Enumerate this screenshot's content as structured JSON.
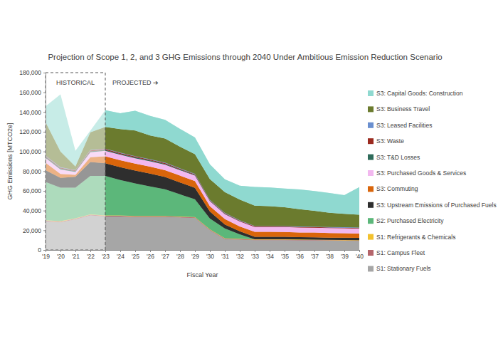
{
  "chart_data": {
    "type": "area",
    "stacked": true,
    "grid": false,
    "legend": "right",
    "title": "Projection of Scope 1, 2, and 3 GHG Emissions through 2040 Under Ambitious Emission Reduction Scenario",
    "x_label": "Fiscal Year",
    "y_label": "GHG Emissions [MTCO2e]",
    "annotations": [
      {
        "text": "HISTORICAL",
        "x": "'19"
      },
      {
        "text": "PROJECTED ➔",
        "x": "'23"
      }
    ],
    "categories": [
      "'19",
      "'20",
      "'21",
      "'22",
      "'23",
      "'24",
      "'25",
      "'26",
      "'27",
      "'28",
      "'29",
      "'30",
      "'31",
      "'32",
      "'33",
      "'34",
      "'35",
      "'36",
      "'37",
      "'38",
      "'39",
      "'40"
    ],
    "ylim": [
      0,
      180000
    ],
    "yticks": [
      0,
      {
        "value": 20000,
        "label": "20,000"
      },
      {
        "value": 40000,
        "label": "40,000"
      },
      {
        "value": 60000,
        "label": "60,000"
      },
      {
        "value": 80000,
        "label": "80,000"
      },
      {
        "value": 100000,
        "label": "100,000"
      },
      {
        "value": 120000,
        "label": "120,000"
      },
      {
        "value": 140000,
        "label": "140,000"
      },
      {
        "value": 160000,
        "label": "160,000"
      },
      {
        "value": 180000,
        "label": "180,000"
      }
    ],
    "series": [
      {
        "name": "S1: Stationary Fuels",
        "color": "#a6a6a6",
        "values": [
          29000,
          28000,
          31000,
          35000,
          34000,
          34000,
          33500,
          33500,
          33500,
          33000,
          32500,
          20000,
          11000,
          10500,
          10000,
          10000,
          10000,
          9800,
          9700,
          9500,
          9400,
          9300
        ]
      },
      {
        "name": "S1: Campus Fleet",
        "color": "#b5656b",
        "values": [
          800,
          800,
          800,
          800,
          700,
          700,
          700,
          650,
          650,
          600,
          600,
          550,
          500,
          500,
          450,
          450,
          400,
          400,
          350,
          350,
          300,
          300
        ]
      },
      {
        "name": "S1: Refrigerants & Chemicals",
        "color": "#f2c12e",
        "values": [
          400,
          400,
          400,
          400,
          400,
          400,
          400,
          400,
          400,
          400,
          400,
          400,
          400,
          400,
          400,
          400,
          400,
          400,
          400,
          400,
          400,
          400
        ]
      },
      {
        "name": "S2: Purchased Electricity",
        "color": "#5cb77a",
        "values": [
          38800,
          34000,
          31000,
          39000,
          40000,
          36000,
          33000,
          30000,
          27000,
          22500,
          18000,
          11000,
          10000,
          4500,
          0,
          0,
          0,
          0,
          0,
          0,
          0,
          0
        ]
      },
      {
        "name": "S3: Upstream Emissions of Purchased Fuels",
        "color": "#2e2e2e",
        "values": [
          12000,
          10000,
          11000,
          14000,
          13000,
          13000,
          13000,
          13000,
          12500,
          12000,
          11500,
          7000,
          4000,
          3000,
          2500,
          2500,
          2500,
          2400,
          2400,
          2300,
          2300,
          2200
        ]
      },
      {
        "name": "S3: Commuting",
        "color": "#d9650b",
        "values": [
          7500,
          4000,
          2000,
          5000,
          7000,
          7000,
          7000,
          7000,
          7000,
          7000,
          7000,
          5500,
          5500,
          5000,
          5000,
          5000,
          5000,
          4800,
          4800,
          4700,
          4600,
          4500
        ]
      },
      {
        "name": "S3: Purchased Goods & Services",
        "color": "#f2b8ef",
        "values": [
          5000,
          4500,
          3000,
          5000,
          5500,
          5500,
          5500,
          5500,
          5500,
          5500,
          5500,
          5000,
          5000,
          5000,
          5000,
          5000,
          5000,
          5000,
          5000,
          5000,
          5000,
          5000
        ]
      },
      {
        "name": "S3: T&D Losses",
        "color": "#2f6b5a",
        "values": [
          1000,
          1000,
          900,
          1000,
          1000,
          900,
          900,
          800,
          800,
          700,
          600,
          400,
          300,
          200,
          0,
          0,
          0,
          0,
          0,
          0,
          0,
          0
        ]
      },
      {
        "name": "S3: Waste",
        "color": "#9b2a1f",
        "values": [
          800,
          800,
          600,
          800,
          800,
          800,
          800,
          800,
          800,
          700,
          700,
          600,
          600,
          600,
          600,
          600,
          600,
          600,
          600,
          600,
          600,
          600
        ]
      },
      {
        "name": "S3: Leased Facilities",
        "color": "#6a8fcf",
        "values": [
          500,
          500,
          500,
          500,
          500,
          500,
          500,
          500,
          500,
          500,
          500,
          500,
          500,
          500,
          500,
          500,
          500,
          500,
          500,
          500,
          500,
          500
        ]
      },
      {
        "name": "S3: Business Travel",
        "color": "#6b7b2e",
        "values": [
          34000,
          16000,
          3500,
          18000,
          22000,
          24000,
          26000,
          24000,
          24500,
          22000,
          20000,
          21000,
          21000,
          21000,
          20500,
          20000,
          19000,
          17500,
          16000,
          14500,
          13500,
          13000
        ]
      },
      {
        "name": "S3: Capital Goods: Construction",
        "color": "#8fd9d0",
        "values": [
          16000,
          58000,
          16000,
          1500,
          17000,
          16000,
          20000,
          20000,
          19000,
          18000,
          17000,
          15000,
          13000,
          14000,
          19000,
          19000,
          19000,
          20000,
          20000,
          20000,
          19000,
          28000
        ]
      }
    ]
  }
}
